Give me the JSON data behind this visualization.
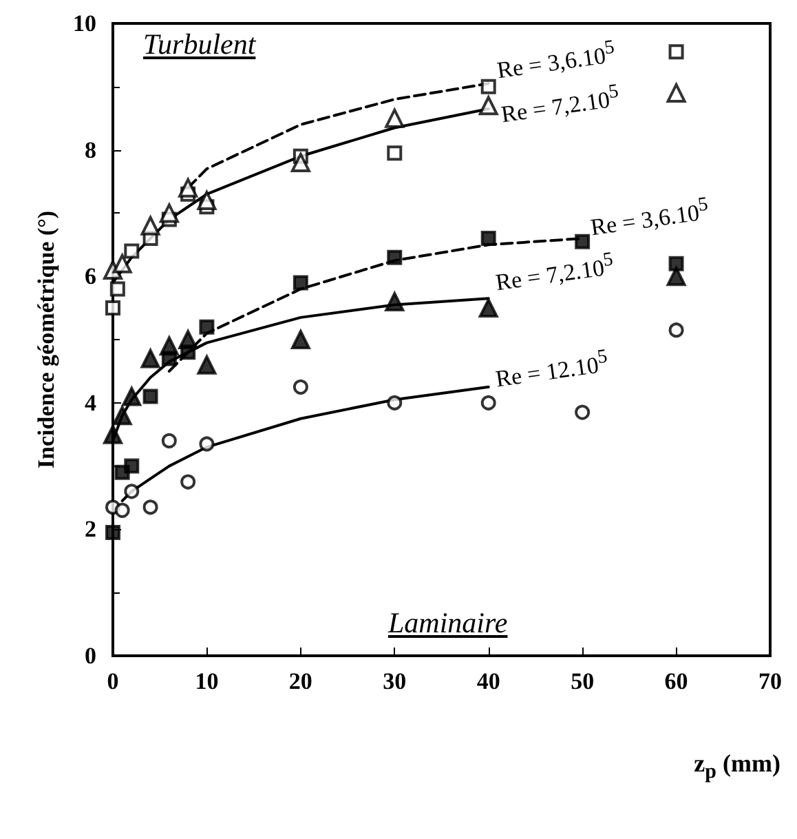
{
  "chart_data": {
    "type": "scatter",
    "xlabel": "z$_{p}$ (mm)",
    "ylabel": "Incidence géométrique (°)",
    "xlim": [
      0,
      70
    ],
    "xticks": [
      0,
      10,
      20,
      30,
      40,
      50,
      60,
      70
    ],
    "ylim": [
      0,
      10
    ],
    "yticks": [
      0,
      2,
      4,
      6,
      8,
      10
    ],
    "grid": false,
    "series": [
      {
        "marker": "square",
        "color": "#ffffff",
        "x": [
          0,
          0.5,
          2,
          4,
          6,
          8,
          10,
          20,
          30,
          40,
          60
        ],
        "values": [
          5.5,
          5.8,
          6.4,
          6.6,
          6.9,
          7.3,
          7.1,
          7.9,
          7.95,
          9.0,
          9.55
        ]
      },
      {
        "marker": "triangle",
        "color": "#ffffff",
        "x": [
          0,
          1,
          4,
          6,
          8,
          10,
          20,
          30,
          40,
          60
        ],
        "values": [
          6.1,
          6.2,
          6.8,
          7.0,
          7.4,
          7.2,
          7.8,
          8.5,
          8.7,
          8.9
        ]
      },
      {
        "marker": "square",
        "color": "#000000",
        "x": [
          0,
          1,
          2,
          4,
          6,
          8,
          10,
          20,
          30,
          40,
          50,
          60
        ],
        "values": [
          1.95,
          2.9,
          3.0,
          4.1,
          4.7,
          4.8,
          5.2,
          5.9,
          6.3,
          6.6,
          6.55,
          6.2
        ]
      },
      {
        "marker": "triangle",
        "color": "#000000",
        "x": [
          0,
          1,
          2,
          4,
          6,
          8,
          10,
          20,
          30,
          40,
          60
        ],
        "values": [
          3.5,
          3.8,
          4.1,
          4.7,
          4.9,
          5.0,
          4.6,
          5.0,
          5.6,
          5.5,
          6.0
        ]
      },
      {
        "marker": "circle",
        "color": "#ffffff",
        "x": [
          0,
          1,
          2,
          4,
          6,
          8,
          10,
          20,
          30,
          40,
          50,
          60
        ],
        "values": [
          2.35,
          2.3,
          2.6,
          2.35,
          3.4,
          2.75,
          3.35,
          4.25,
          4.0,
          4.0,
          3.85,
          5.15
        ]
      },
      {
        "type": "line",
        "marker": "none",
        "line_style": "dashed",
        "color": "#000000",
        "x": [
          8,
          10,
          20,
          30,
          40
        ],
        "values": [
          7.4,
          7.7,
          8.4,
          8.8,
          9.05
        ]
      },
      {
        "type": "line",
        "marker": "none",
        "line_style": "solid",
        "color": "#000000",
        "x": [
          0,
          2,
          4,
          6,
          8,
          10,
          20,
          30,
          40
        ],
        "values": [
          5.9,
          6.3,
          6.6,
          6.9,
          7.1,
          7.3,
          7.9,
          8.35,
          8.65
        ]
      },
      {
        "type": "line",
        "marker": "none",
        "line_style": "dashed",
        "color": "#000000",
        "x": [
          6,
          10,
          20,
          30,
          40,
          50
        ],
        "values": [
          4.5,
          5.1,
          5.8,
          6.25,
          6.5,
          6.6
        ]
      },
      {
        "type": "line",
        "marker": "none",
        "line_style": "solid",
        "color": "#000000",
        "x": [
          0,
          1,
          2,
          4,
          6,
          8,
          10,
          20,
          30,
          40
        ],
        "values": [
          3.4,
          3.8,
          4.05,
          4.4,
          4.65,
          4.8,
          4.95,
          5.35,
          5.55,
          5.65
        ]
      },
      {
        "type": "line",
        "marker": "none",
        "line_style": "solid",
        "color": "#000000",
        "x": [
          1,
          2,
          4,
          6,
          10,
          20,
          30,
          40
        ],
        "values": [
          2.45,
          2.6,
          2.8,
          3.0,
          3.3,
          3.75,
          4.05,
          4.25
        ]
      }
    ],
    "annotations": [
      "Turbulent",
      "Laminaire",
      "Re = 3,6.10$^{5}$",
      "Re = 7,2.10$^{5}$",
      "Re = 3,6.10$^{5}$",
      "Re = 7,2.10$^{5}$",
      "Re = 12.10$^{5}$"
    ]
  }
}
